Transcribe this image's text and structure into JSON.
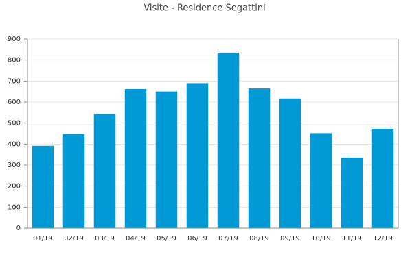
{
  "chart_data": {
    "type": "bar",
    "title": "Visite - Residence Segattini",
    "categories": [
      "01/19",
      "02/19",
      "03/19",
      "04/19",
      "05/19",
      "06/19",
      "07/19",
      "08/19",
      "09/19",
      "10/19",
      "11/19",
      "12/19"
    ],
    "values": [
      392,
      448,
      543,
      662,
      650,
      690,
      835,
      665,
      617,
      452,
      336,
      473
    ],
    "color": "#0099d6",
    "ylim": [
      0,
      900
    ],
    "yticks": [
      0,
      100,
      200,
      300,
      400,
      500,
      600,
      700,
      800,
      900
    ],
    "grid": true
  }
}
